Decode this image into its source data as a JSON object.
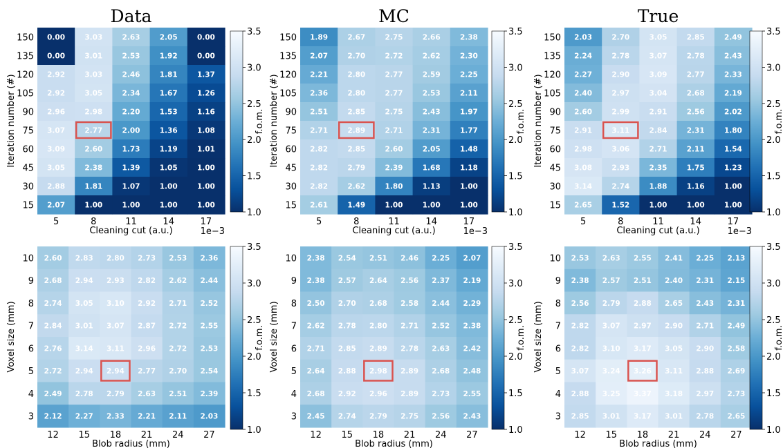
{
  "colorbar": {
    "min": 1.0,
    "max": 3.5,
    "ticks": [
      "1.0",
      "1.5",
      "2.0",
      "2.5",
      "3.0",
      "3.5"
    ],
    "label": "f.o.m.",
    "colormap": "Blues_r",
    "dark": "#08306b",
    "light": "#f7fbff"
  },
  "highlight_color": "#d9534f",
  "chart_data": [
    {
      "type": "heatmap",
      "title": "Data",
      "xlabel": "Cleaning cut (a.u.)",
      "ylabel": "Iteration number (#)",
      "x_offset_label": "1e−3",
      "x": [
        "5",
        "8",
        "11",
        "14",
        "17"
      ],
      "y": [
        "150",
        "135",
        "120",
        "105",
        "90",
        "75",
        "60",
        "45",
        "30",
        "15"
      ],
      "values": [
        [
          0.0,
          3.03,
          2.63,
          2.05,
          0.0
        ],
        [
          0.0,
          3.01,
          2.53,
          1.92,
          0.0
        ],
        [
          2.92,
          3.03,
          2.46,
          1.81,
          1.37
        ],
        [
          2.92,
          3.05,
          2.34,
          1.67,
          1.26
        ],
        [
          2.96,
          2.98,
          2.2,
          1.53,
          1.16
        ],
        [
          3.07,
          2.77,
          2.0,
          1.36,
          1.08
        ],
        [
          3.09,
          2.6,
          1.73,
          1.19,
          1.01
        ],
        [
          3.05,
          2.38,
          1.39,
          1.05,
          1.0
        ],
        [
          2.88,
          1.81,
          1.07,
          1.0,
          1.0
        ],
        [
          2.07,
          1.0,
          1.0,
          1.0,
          1.0
        ]
      ],
      "highlight": {
        "row": 5,
        "col": 1
      }
    },
    {
      "type": "heatmap",
      "title": "MC",
      "xlabel": "Cleaning cut (a.u.)",
      "ylabel": "Iteration number (#)",
      "x_offset_label": "1e−3",
      "x": [
        "5",
        "8",
        "11",
        "14",
        "17"
      ],
      "y": [
        "150",
        "135",
        "120",
        "105",
        "90",
        "75",
        "60",
        "45",
        "30",
        "15"
      ],
      "values": [
        [
          1.89,
          2.67,
          2.75,
          2.66,
          2.38
        ],
        [
          2.07,
          2.7,
          2.72,
          2.62,
          2.3
        ],
        [
          2.21,
          2.8,
          2.77,
          2.59,
          2.25
        ],
        [
          2.36,
          2.8,
          2.77,
          2.53,
          2.11
        ],
        [
          2.51,
          2.85,
          2.75,
          2.43,
          1.97
        ],
        [
          2.71,
          2.89,
          2.71,
          2.31,
          1.77
        ],
        [
          2.82,
          2.85,
          2.6,
          2.05,
          1.48
        ],
        [
          2.82,
          2.79,
          2.39,
          1.68,
          1.18
        ],
        [
          2.82,
          2.62,
          1.8,
          1.13,
          1.0
        ],
        [
          2.61,
          1.49,
          1.0,
          1.0,
          1.0
        ]
      ],
      "highlight": {
        "row": 5,
        "col": 1
      }
    },
    {
      "type": "heatmap",
      "title": "True",
      "xlabel": "Cleaning cut (a.u.)",
      "ylabel": "Iteration number (#)",
      "x_offset_label": "1e−3",
      "x": [
        "5",
        "8",
        "11",
        "14",
        "17"
      ],
      "y": [
        "150",
        "135",
        "120",
        "105",
        "90",
        "75",
        "60",
        "45",
        "30",
        "15"
      ],
      "values": [
        [
          2.03,
          2.7,
          3.05,
          2.85,
          2.49
        ],
        [
          2.24,
          2.78,
          3.07,
          2.78,
          2.43
        ],
        [
          2.27,
          2.9,
          3.09,
          2.77,
          2.33
        ],
        [
          2.4,
          2.97,
          3.04,
          2.68,
          2.19
        ],
        [
          2.6,
          2.99,
          2.91,
          2.56,
          2.02
        ],
        [
          2.91,
          3.11,
          2.84,
          2.31,
          1.8
        ],
        [
          2.98,
          3.06,
          2.71,
          2.11,
          1.54
        ],
        [
          3.08,
          2.93,
          2.35,
          1.75,
          1.23
        ],
        [
          3.14,
          2.74,
          1.88,
          1.16,
          1.0
        ],
        [
          2.65,
          1.52,
          1.0,
          1.0,
          1.0
        ]
      ],
      "highlight": {
        "row": 5,
        "col": 1
      }
    },
    {
      "type": "heatmap",
      "title": "",
      "xlabel": "Blob radius (mm)",
      "ylabel": "Voxel size (mm)",
      "x_offset_label": "",
      "x": [
        "12",
        "15",
        "18",
        "21",
        "24",
        "27"
      ],
      "y": [
        "10",
        "9",
        "8",
        "7",
        "6",
        "5",
        "4",
        "3"
      ],
      "values": [
        [
          2.6,
          2.83,
          2.8,
          2.73,
          2.53,
          2.36
        ],
        [
          2.68,
          2.94,
          2.93,
          2.82,
          2.62,
          2.44
        ],
        [
          2.74,
          3.05,
          3.1,
          2.92,
          2.71,
          2.52
        ],
        [
          2.84,
          3.01,
          3.07,
          2.87,
          2.72,
          2.55
        ],
        [
          2.76,
          3.14,
          3.11,
          2.96,
          2.72,
          2.53
        ],
        [
          2.72,
          2.94,
          2.94,
          2.77,
          2.7,
          2.54
        ],
        [
          2.49,
          2.78,
          2.79,
          2.63,
          2.51,
          2.39
        ],
        [
          2.12,
          2.27,
          2.33,
          2.21,
          2.11,
          2.03
        ]
      ],
      "highlight": {
        "row": 5,
        "col": 2
      }
    },
    {
      "type": "heatmap",
      "title": "",
      "xlabel": "Blob radius (mm)",
      "ylabel": "Voxel size (mm)",
      "x_offset_label": "",
      "x": [
        "12",
        "15",
        "18",
        "21",
        "24",
        "27"
      ],
      "y": [
        "10",
        "9",
        "8",
        "7",
        "6",
        "5",
        "4",
        "3"
      ],
      "values": [
        [
          2.38,
          2.54,
          2.51,
          2.46,
          2.25,
          2.07
        ],
        [
          2.38,
          2.57,
          2.64,
          2.56,
          2.37,
          2.19
        ],
        [
          2.5,
          2.7,
          2.68,
          2.58,
          2.44,
          2.29
        ],
        [
          2.62,
          2.78,
          2.8,
          2.71,
          2.52,
          2.38
        ],
        [
          2.71,
          2.85,
          2.89,
          2.78,
          2.63,
          2.42
        ],
        [
          2.64,
          2.88,
          2.98,
          2.89,
          2.68,
          2.48
        ],
        [
          2.68,
          2.92,
          2.96,
          2.89,
          2.73,
          2.55
        ],
        [
          2.45,
          2.74,
          2.79,
          2.75,
          2.56,
          2.43
        ]
      ],
      "highlight": {
        "row": 5,
        "col": 2
      }
    },
    {
      "type": "heatmap",
      "title": "",
      "xlabel": "Blob radius (mm)",
      "ylabel": "Voxel size (mm)",
      "x_offset_label": "",
      "x": [
        "12",
        "15",
        "18",
        "21",
        "24",
        "27"
      ],
      "y": [
        "10",
        "9",
        "8",
        "7",
        "6",
        "5",
        "4",
        "3"
      ],
      "values": [
        [
          2.53,
          2.63,
          2.55,
          2.41,
          2.25,
          2.13
        ],
        [
          2.38,
          2.57,
          2.51,
          2.4,
          2.31,
          2.15
        ],
        [
          2.56,
          2.79,
          2.88,
          2.65,
          2.43,
          2.31
        ],
        [
          2.82,
          3.07,
          2.97,
          2.9,
          2.71,
          2.49
        ],
        [
          2.82,
          3.1,
          3.17,
          3.05,
          2.9,
          2.58
        ],
        [
          3.07,
          3.24,
          3.26,
          3.11,
          2.88,
          2.69
        ],
        [
          2.88,
          3.25,
          3.37,
          3.18,
          2.97,
          2.73
        ],
        [
          2.85,
          3.01,
          3.17,
          3.01,
          2.78,
          2.65
        ]
      ],
      "highlight": {
        "row": 5,
        "col": 2
      }
    }
  ]
}
